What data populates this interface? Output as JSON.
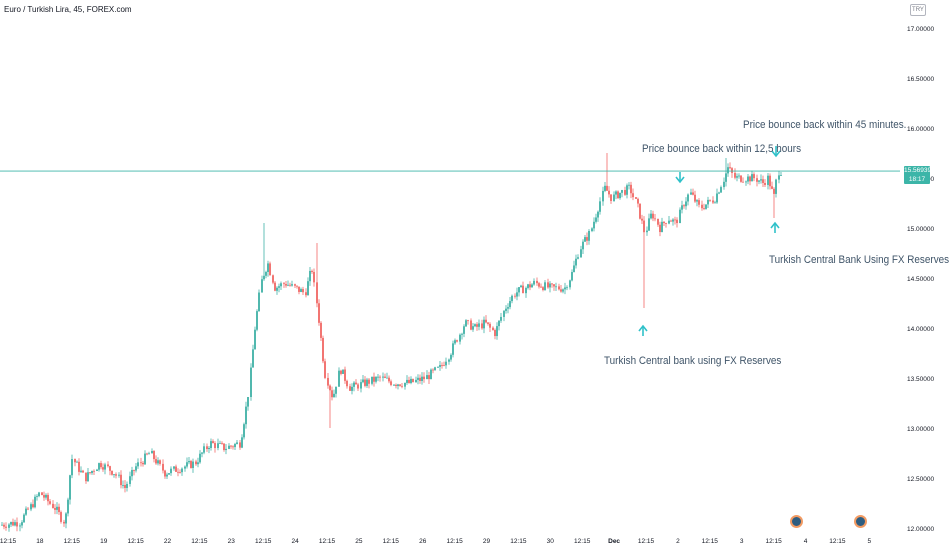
{
  "symbol_title": "Euro / Turkish Lira, 45, FOREX.com",
  "currency_label": "TRY",
  "last_price": {
    "price": "15.56939",
    "countdown": "18:17"
  },
  "annotations": {
    "bounce_12h": "Price bounce back within 12,5 hours",
    "bounce_45m": "Price bounce back within 45 minutes.",
    "cb_reserves_1": "Turkish Central bank using FX Reserves",
    "cb_reserves_2": "Turkish Central Bank Using FX Reserves"
  },
  "colors": {
    "up": "#26a69a",
    "down": "#ef5350",
    "annotation_arrow": "#2fc1c9",
    "price_line": "#3cb5a8"
  },
  "chart_data": {
    "type": "candlestick",
    "title": "Euro / Turkish Lira, 45, FOREX.com",
    "ylabel": "TRY",
    "ylim": [
      12.0,
      17.2
    ],
    "y_ticks": [
      "17.00000",
      "16.50000",
      "16.00000",
      "15.50000",
      "15.00000",
      "14.50000",
      "14.00000",
      "13.50000",
      "13.00000",
      "12.50000",
      "12.00000"
    ],
    "x_ticks": [
      "12:15",
      "18",
      "12:15",
      "19",
      "12:15",
      "22",
      "12:15",
      "23",
      "12:15",
      "24",
      "12:15",
      "25",
      "12:15",
      "26",
      "12:15",
      "29",
      "12:15",
      "30",
      "12:15",
      "Dec",
      "12:15",
      "2",
      "12:15",
      "3",
      "12:15",
      "4",
      "12:15",
      "5"
    ],
    "last_price": 15.56939,
    "price_path": [
      [
        0,
        12.03
      ],
      [
        20,
        12.06
      ],
      [
        40,
        12.35
      ],
      [
        55,
        12.2
      ],
      [
        65,
        12.05
      ],
      [
        72,
        12.7
      ],
      [
        85,
        12.5
      ],
      [
        100,
        12.65
      ],
      [
        115,
        12.55
      ],
      [
        125,
        12.4
      ],
      [
        135,
        12.6
      ],
      [
        150,
        12.75
      ],
      [
        165,
        12.55
      ],
      [
        180,
        12.6
      ],
      [
        195,
        12.65
      ],
      [
        210,
        12.85
      ],
      [
        225,
        12.8
      ],
      [
        240,
        12.85
      ],
      [
        248,
        13.3
      ],
      [
        255,
        14.0
      ],
      [
        262,
        14.5
      ],
      [
        268,
        14.65
      ],
      [
        275,
        14.4
      ],
      [
        285,
        14.45
      ],
      [
        295,
        14.4
      ],
      [
        305,
        14.35
      ],
      [
        312,
        14.6
      ],
      [
        318,
        14.15
      ],
      [
        325,
        13.55
      ],
      [
        333,
        13.3
      ],
      [
        340,
        13.6
      ],
      [
        350,
        13.4
      ],
      [
        365,
        13.45
      ],
      [
        380,
        13.5
      ],
      [
        395,
        13.45
      ],
      [
        410,
        13.45
      ],
      [
        425,
        13.5
      ],
      [
        440,
        13.6
      ],
      [
        450,
        13.75
      ],
      [
        460,
        13.95
      ],
      [
        465,
        14.05
      ],
      [
        475,
        14.0
      ],
      [
        485,
        14.05
      ],
      [
        495,
        13.95
      ],
      [
        505,
        14.2
      ],
      [
        515,
        14.35
      ],
      [
        525,
        14.4
      ],
      [
        535,
        14.45
      ],
      [
        550,
        14.4
      ],
      [
        565,
        14.4
      ],
      [
        572,
        14.55
      ],
      [
        580,
        14.8
      ],
      [
        590,
        14.95
      ],
      [
        598,
        15.2
      ],
      [
        605,
        15.4
      ],
      [
        612,
        15.3
      ],
      [
        620,
        15.35
      ],
      [
        630,
        15.4
      ],
      [
        638,
        15.2
      ],
      [
        645,
        14.95
      ],
      [
        652,
        15.15
      ],
      [
        660,
        15.0
      ],
      [
        668,
        15.1
      ],
      [
        676,
        15.05
      ],
      [
        684,
        15.25
      ],
      [
        690,
        15.35
      ],
      [
        700,
        15.2
      ],
      [
        708,
        15.25
      ],
      [
        715,
        15.3
      ],
      [
        722,
        15.45
      ],
      [
        728,
        15.6
      ],
      [
        735,
        15.5
      ],
      [
        745,
        15.5
      ],
      [
        755,
        15.5
      ],
      [
        763,
        15.45
      ],
      [
        768,
        15.5
      ],
      [
        774,
        15.3
      ],
      [
        778,
        15.57
      ],
      [
        782,
        15.57
      ]
    ],
    "spikes": [
      {
        "x": 264,
        "high": 15.05
      },
      {
        "x": 316,
        "high": 14.85
      },
      {
        "x": 330,
        "low": 13.0
      },
      {
        "x": 607,
        "high": 15.75
      },
      {
        "x": 645,
        "low": 14.2
      },
      {
        "x": 726,
        "high": 15.7
      },
      {
        "x": 774,
        "low": 15.1
      }
    ]
  }
}
